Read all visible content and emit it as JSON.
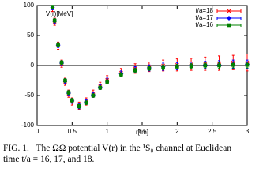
{
  "chart_data": {
    "type": "errorbar",
    "x_label": "r[fm]",
    "y_label": "V(r)[MeV]",
    "xlim": [
      0,
      3
    ],
    "xticks": [
      0,
      0.5,
      1,
      1.5,
      2,
      2.5,
      3
    ],
    "ylim": [
      -100,
      100
    ],
    "yticks": [
      -100,
      -50,
      0,
      50,
      100
    ],
    "legend": "top-right",
    "x": [
      0.22,
      0.25,
      0.3,
      0.35,
      0.4,
      0.45,
      0.5,
      0.6,
      0.7,
      0.8,
      0.9,
      1.0,
      1.2,
      1.4,
      1.6,
      1.8,
      2.0,
      2.2,
      2.4,
      2.6,
      2.8,
      3.0
    ],
    "series": [
      {
        "name": "t/a=18",
        "color": "#ff0000",
        "marker": "cross",
        "values": [
          96,
          73,
          33,
          3,
          -27,
          -47,
          -60,
          -67,
          -60,
          -47,
          -34,
          -24,
          -12,
          -5,
          -2,
          0,
          1,
          2,
          3,
          4,
          5,
          5
        ],
        "errors": [
          6,
          6,
          6,
          6,
          6,
          6,
          6,
          6,
          6,
          6,
          6,
          7,
          7,
          8,
          8,
          9,
          10,
          10,
          11,
          12,
          12,
          14
        ]
      },
      {
        "name": "t/a=17",
        "color": "#0000ff",
        "marker": "diamond",
        "values": [
          97,
          74,
          34,
          4,
          -26,
          -46,
          -59,
          -68,
          -61,
          -49,
          -36,
          -26,
          -14,
          -7,
          -4,
          -2,
          -1,
          0,
          1,
          1,
          2,
          2
        ],
        "errors": [
          4,
          4,
          4,
          4,
          4,
          4,
          4,
          4,
          4,
          4,
          4,
          5,
          5,
          5,
          5,
          6,
          6,
          6,
          6,
          7,
          7,
          7
        ]
      },
      {
        "name": "t/a=16",
        "color": "#008000",
        "marker": "square",
        "values": [
          98,
          75,
          35,
          5,
          -25,
          -45,
          -58,
          -68,
          -62,
          -50,
          -37,
          -27,
          -15,
          -8,
          -5,
          -3,
          -2,
          -1,
          0,
          0,
          1,
          1
        ],
        "errors": [
          3,
          3,
          3,
          3,
          3,
          3,
          3,
          3,
          3,
          3,
          3,
          3,
          3,
          3,
          3,
          4,
          4,
          4,
          4,
          5,
          5,
          5
        ]
      }
    ]
  },
  "caption": {
    "label": "FIG. 1.",
    "lines": [
      "The ΩΩ potential V(r) in the ¹S₀ channel at Euclidean",
      "time t/a = 16, 17, and 18."
    ]
  }
}
